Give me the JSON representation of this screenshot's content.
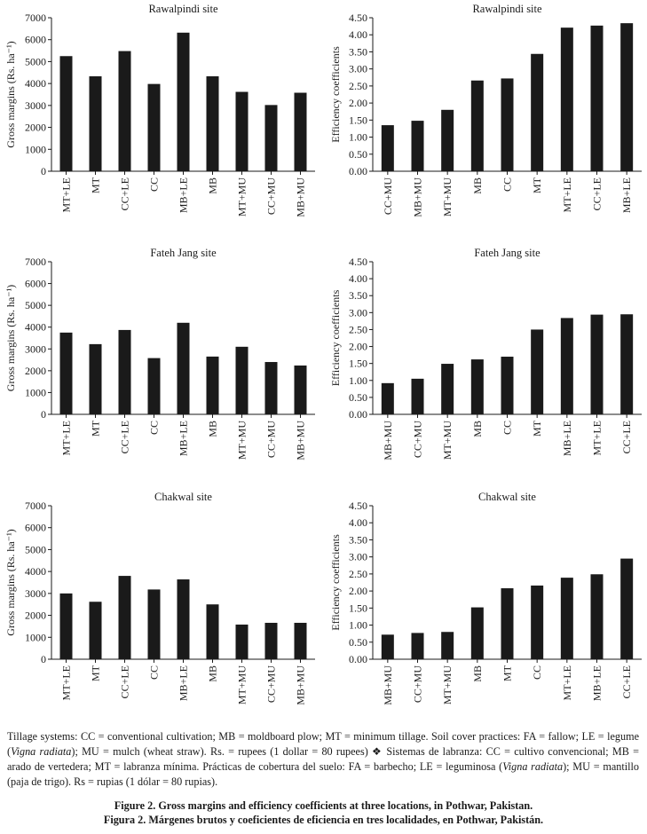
{
  "chart_data": [
    {
      "type": "bar",
      "title": "Rawalpindi site",
      "ylabel": "Gross margins (Rs. ha⁻¹)",
      "ylim": [
        0,
        7000
      ],
      "yticks": [
        0,
        1000,
        2000,
        3000,
        4000,
        5000,
        6000,
        7000
      ],
      "tick_decimals": 0,
      "categories": [
        "MT+LE",
        "MT",
        "CC+LE",
        "CC",
        "MB+LE",
        "MB",
        "MT+MU",
        "CC+MU",
        "MB+MU"
      ],
      "values": [
        5250,
        4330,
        5480,
        3980,
        6320,
        4330,
        3620,
        3020,
        3580
      ]
    },
    {
      "type": "bar",
      "title": "Rawalpindi site",
      "ylabel": "Efficiency coefficients",
      "ylim": [
        0,
        4.5
      ],
      "yticks": [
        0,
        0.5,
        1,
        1.5,
        2,
        2.5,
        3,
        3.5,
        4,
        4.5
      ],
      "tick_decimals": 2,
      "categories": [
        "CC+MU",
        "MB+MU",
        "MT+MU",
        "MB",
        "CC",
        "MT",
        "MT+LE",
        "CC+LE",
        "MB+LE"
      ],
      "values": [
        1.35,
        1.48,
        1.8,
        2.66,
        2.72,
        3.44,
        4.21,
        4.27,
        4.34
      ]
    },
    {
      "type": "bar",
      "title": "Fateh Jang site",
      "ylabel": "Gross margins (Rs. ha⁻¹)",
      "ylim": [
        0,
        7000
      ],
      "yticks": [
        0,
        1000,
        2000,
        3000,
        4000,
        5000,
        6000,
        7000
      ],
      "tick_decimals": 0,
      "categories": [
        "MT+LE",
        "MT",
        "CC+LE",
        "CC",
        "MB+LE",
        "MB",
        "MT+MU",
        "CC+MU",
        "MB+MU"
      ],
      "values": [
        3750,
        3220,
        3870,
        2580,
        4200,
        2650,
        3100,
        2400,
        2240
      ]
    },
    {
      "type": "bar",
      "title": "Fateh Jang site",
      "ylabel": "Efficiency coefficients",
      "ylim": [
        0,
        4.5
      ],
      "yticks": [
        0,
        0.5,
        1,
        1.5,
        2,
        2.5,
        3,
        3.5,
        4,
        4.5
      ],
      "tick_decimals": 2,
      "categories": [
        "MB+MU",
        "CC+MU",
        "MT+MU",
        "MB",
        "CC",
        "MT",
        "MB+LE",
        "MT+LE",
        "CC+LE"
      ],
      "values": [
        0.92,
        1.05,
        1.49,
        1.62,
        1.7,
        2.5,
        2.84,
        2.94,
        2.95
      ]
    },
    {
      "type": "bar",
      "title": "Chakwal site",
      "ylabel": "Gross margins (Rs. ha⁻¹)",
      "ylim": [
        0,
        7000
      ],
      "yticks": [
        0,
        1000,
        2000,
        3000,
        4000,
        5000,
        6000,
        7000
      ],
      "tick_decimals": 0,
      "categories": [
        "MT+LE",
        "MT",
        "CC+LE",
        "CC",
        "MB+LE",
        "MB",
        "MT+MU",
        "CC+MU",
        "MB+MU"
      ],
      "values": [
        3000,
        2620,
        3800,
        3180,
        3640,
        2500,
        1580,
        1660,
        1660
      ]
    },
    {
      "type": "bar",
      "title": "Chakwal site",
      "ylabel": "Efficiency coefficients",
      "ylim": [
        0,
        4.5
      ],
      "yticks": [
        0,
        0.5,
        1,
        1.5,
        2,
        2.5,
        3,
        3.5,
        4,
        4.5
      ],
      "tick_decimals": 2,
      "categories": [
        "MB+MU",
        "CC+MU",
        "MT+MU",
        "MB",
        "MT",
        "CC",
        "MT+LE",
        "MB+LE",
        "CC+LE"
      ],
      "values": [
        0.72,
        0.77,
        0.8,
        1.52,
        2.08,
        2.16,
        2.39,
        2.49,
        2.95
      ]
    }
  ],
  "caption": {
    "s1": "Tillage systems: CC = conventional cultivation; MB = moldboard plow; MT = minimum tillage. Soil cover practices: FA = fallow; LE = legume (",
    "s1_italic": "Vigna radiata",
    "s2": "); MU = mulch (wheat straw). Rs. = rupees (1 dollar = 80 rupees) ❖ Sistemas de labranza: CC = cultivo convencional; MB = arado de vertedera; MT = labranza mínima. Prácticas de cobertura del suelo: FA = barbecho; LE = leguminosa (",
    "s2_italic": "Vigna radiata",
    "s3": "); MU = mantillo (paja de trigo). Rs = rupias (1 dólar = 80 rupias)."
  },
  "figure_title": {
    "en": "Figure 2. Gross margins and efficiency coefficients at three locations, in Pothwar, Pakistan.",
    "es": "Figura 2. Márgenes brutos y coeficientes de eficiencia en tres localidades, en Pothwar, Pakistán."
  }
}
